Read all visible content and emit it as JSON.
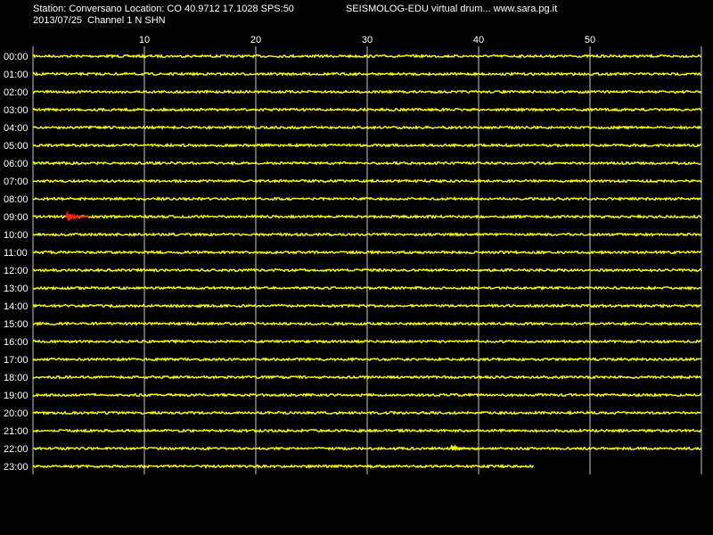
{
  "header": {
    "station_line": "Station: Conversano Location: CO 40.9712 17.1028 SPS:50",
    "date_line": "2013/07/25  Channel 1 N SHN",
    "software_line": "SEISMOLOG-EDU virtual drum... www.sara.pg.it"
  },
  "colors": {
    "background": "#000000",
    "trace": "#ffff00",
    "event": "#ff2020",
    "grid": "#c8c8c8",
    "text": "#ffffff"
  },
  "chart_data": {
    "type": "line",
    "x_ticks": [
      10,
      20,
      30,
      40,
      50
    ],
    "xlim": [
      0,
      60
    ],
    "grid": true,
    "rows": [
      "00:00",
      "01:00",
      "02:00",
      "03:00",
      "04:00",
      "05:00",
      "06:00",
      "07:00",
      "08:00",
      "09:00",
      "10:00",
      "11:00",
      "12:00",
      "13:00",
      "14:00",
      "15:00",
      "16:00",
      "17:00",
      "18:00",
      "19:00",
      "20:00",
      "21:00",
      "22:00",
      "23:00"
    ],
    "last_row_end_minute": 45,
    "events": [
      {
        "row": "09:00",
        "start_minute": 3,
        "end_minute": 5,
        "color": "red"
      },
      {
        "row": "22:00",
        "start_minute": 37.5,
        "end_minute": 39,
        "color": "yellow"
      }
    ]
  }
}
